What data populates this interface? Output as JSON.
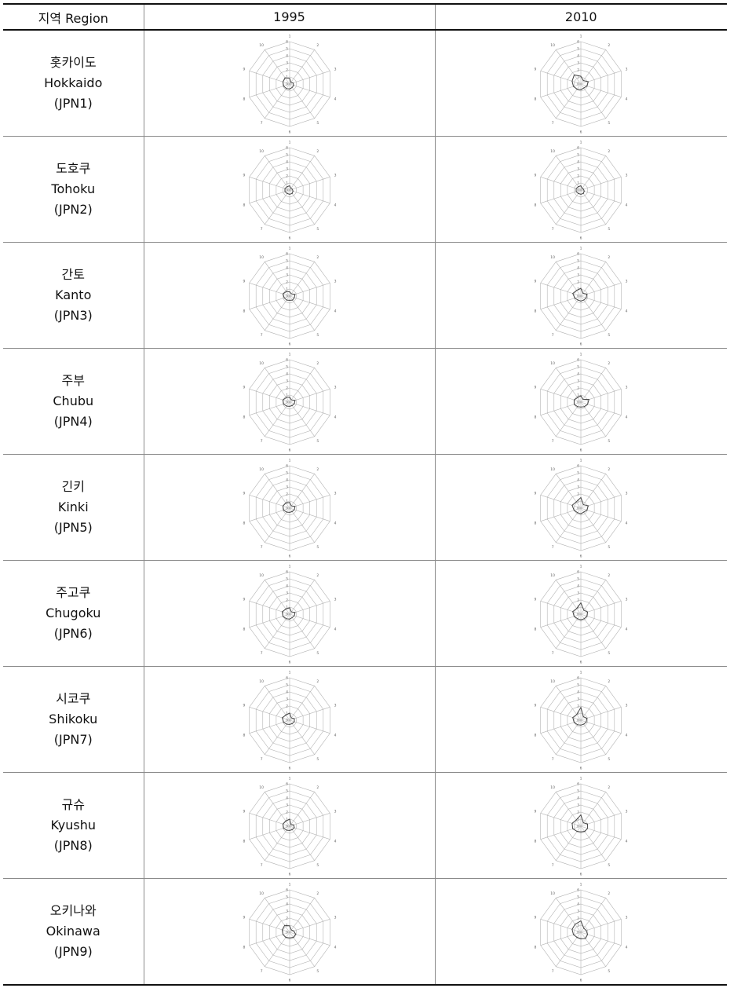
{
  "header": {
    "region": "지역 Region",
    "y1995": "1995",
    "y2010": "2010"
  },
  "rows": [
    {
      "ko": "홋카이도",
      "en": "Hokkaido",
      "code": "(JPN1)"
    },
    {
      "ko": "도호쿠",
      "en": "Tohoku",
      "code": "(JPN2)"
    },
    {
      "ko": "간토",
      "en": "Kanto",
      "code": "(JPN3)"
    },
    {
      "ko": "주부",
      "en": "Chubu",
      "code": "(JPN4)"
    },
    {
      "ko": "긴키",
      "en": "Kinki",
      "code": "(JPN5)"
    },
    {
      "ko": "주고쿠",
      "en": "Chugoku",
      "code": "(JPN6)"
    },
    {
      "ko": "시코쿠",
      "en": "Shikoku",
      "code": "(JPN7)"
    },
    {
      "ko": "규슈",
      "en": "Kyushu",
      "code": "(JPN8)"
    },
    {
      "ko": "오키나와",
      "en": "Okinawa",
      "code": "(JPN9)"
    }
  ],
  "chart_data": {
    "type": "radar",
    "axes": [
      "1",
      "2",
      "3",
      "4",
      "5",
      "6",
      "7",
      "8",
      "9",
      "10"
    ],
    "radial_ticks": [
      "0",
      "1",
      "2",
      "3",
      "4",
      "5",
      "6"
    ],
    "rlim": [
      0,
      6
    ],
    "grid": true,
    "colors": {
      "grid": "#b4b4b4",
      "series": "#444444",
      "label": "#666666"
    },
    "charts": [
      {
        "region": "Hokkaido",
        "year": "1995",
        "values": [
          0.8,
          0.3,
          0.5,
          0.6,
          0.6,
          0.7,
          0.8,
          0.9,
          1.0,
          1.1
        ]
      },
      {
        "region": "Hokkaido",
        "year": "2010",
        "values": [
          1.1,
          0.6,
          1.1,
          0.9,
          0.7,
          0.8,
          0.9,
          1.1,
          1.3,
          1.6
        ]
      },
      {
        "region": "Tohoku",
        "year": "1995",
        "values": [
          0.6,
          0.3,
          0.4,
          0.5,
          0.6,
          0.6,
          0.6,
          0.7,
          0.7,
          0.6
        ]
      },
      {
        "region": "Tohoku",
        "year": "2010",
        "values": [
          0.6,
          0.3,
          0.4,
          0.5,
          0.6,
          0.6,
          0.6,
          0.7,
          0.7,
          0.6
        ]
      },
      {
        "region": "Kanto",
        "year": "1995",
        "values": [
          0.6,
          0.4,
          0.8,
          0.7,
          0.7,
          0.6,
          0.7,
          0.8,
          1.0,
          0.8
        ]
      },
      {
        "region": "Kanto",
        "year": "2010",
        "values": [
          1.1,
          0.5,
          0.9,
          0.8,
          0.7,
          0.7,
          0.7,
          0.9,
          1.2,
          1.0
        ]
      },
      {
        "region": "Chubu",
        "year": "1995",
        "values": [
          0.7,
          0.4,
          0.8,
          0.7,
          0.6,
          0.6,
          0.7,
          0.9,
          1.0,
          0.8
        ]
      },
      {
        "region": "Chubu",
        "year": "2010",
        "values": [
          0.9,
          0.5,
          1.2,
          1.0,
          0.8,
          0.7,
          0.8,
          1.0,
          1.0,
          0.8
        ]
      },
      {
        "region": "Kinki",
        "year": "1995",
        "values": [
          0.8,
          0.4,
          0.8,
          0.7,
          0.6,
          0.6,
          0.7,
          0.9,
          1.0,
          0.9
        ]
      },
      {
        "region": "Kinki",
        "year": "2010",
        "values": [
          1.5,
          0.6,
          1.1,
          0.9,
          0.7,
          0.8,
          0.8,
          1.0,
          1.3,
          1.1
        ]
      },
      {
        "region": "Chugoku",
        "year": "1995",
        "values": [
          0.9,
          0.4,
          0.8,
          0.7,
          0.6,
          0.7,
          0.8,
          1.0,
          1.1,
          0.9
        ]
      },
      {
        "region": "Chugoku",
        "year": "2010",
        "values": [
          1.6,
          0.7,
          1.0,
          0.9,
          0.8,
          0.8,
          0.8,
          1.0,
          1.2,
          1.0
        ]
      },
      {
        "region": "Shikoku",
        "year": "1995",
        "values": [
          1.0,
          0.4,
          0.7,
          0.7,
          0.6,
          0.6,
          0.7,
          0.9,
          1.1,
          0.9
        ]
      },
      {
        "region": "Shikoku",
        "year": "2010",
        "values": [
          1.8,
          0.6,
          0.9,
          0.8,
          0.7,
          0.7,
          0.8,
          1.0,
          1.2,
          1.0
        ]
      },
      {
        "region": "Kyushu",
        "year": "1995",
        "values": [
          1.0,
          0.3,
          0.6,
          0.7,
          0.6,
          0.6,
          0.7,
          0.9,
          1.0,
          0.9
        ]
      },
      {
        "region": "Kyushu",
        "year": "2010",
        "values": [
          1.6,
          0.6,
          1.0,
          1.0,
          0.9,
          0.8,
          0.9,
          1.2,
          1.3,
          1.1
        ]
      },
      {
        "region": "Okinawa",
        "year": "1995",
        "values": [
          0.9,
          0.4,
          0.6,
          0.9,
          0.9,
          0.8,
          0.9,
          1.0,
          1.1,
          1.2
        ]
      },
      {
        "region": "Okinawa",
        "year": "2010",
        "values": [
          1.6,
          0.7,
          0.8,
          1.0,
          1.1,
          0.9,
          0.9,
          1.1,
          1.3,
          1.4
        ]
      }
    ]
  }
}
